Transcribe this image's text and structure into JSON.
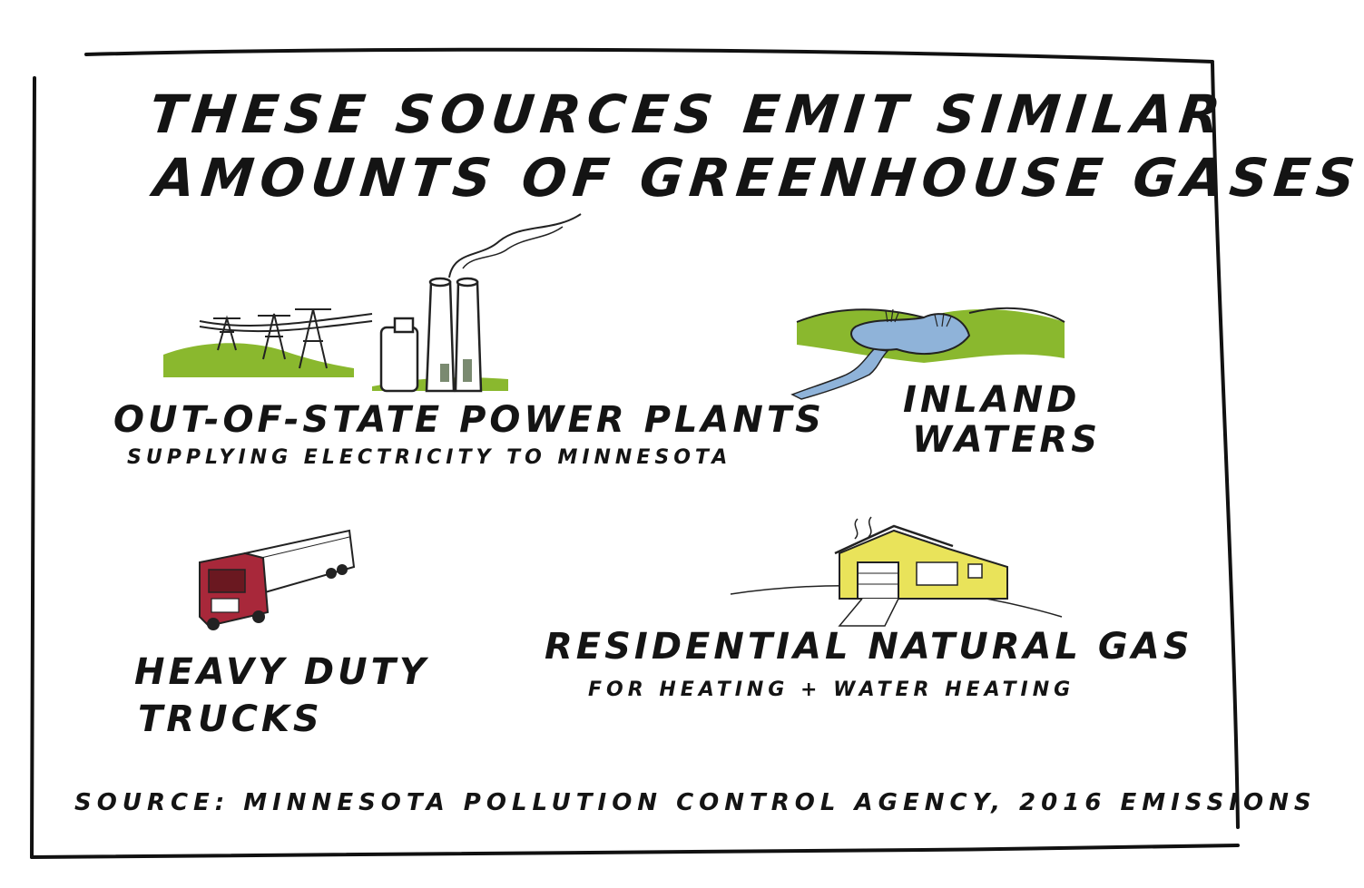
{
  "title": {
    "line1": "THESE SOURCES EMIT SIMILAR",
    "line2": "AMOUNTS OF GREENHOUSE GASES"
  },
  "items": [
    {
      "label": "OUT-OF-STATE POWER PLANTS",
      "sublabel": "SUPPLYING ELECTRICITY TO MINNESOTA",
      "icon": "power-plant-icon"
    },
    {
      "label_line1": "INLAND",
      "label_line2": "WATERS",
      "icon": "lake-icon"
    },
    {
      "label_line1": "HEAVY DUTY",
      "label_line2": "TRUCKS",
      "icon": "truck-icon"
    },
    {
      "label": "RESIDENTIAL NATURAL GAS",
      "sublabel": "FOR HEATING + WATER HEATING",
      "icon": "house-icon"
    }
  ],
  "source": "SOURCE: MINNESOTA POLLUTION CONTROL AGENCY, 2016 EMISSIONS",
  "colors": {
    "grass": "#8ab82e",
    "water": "#8fb3d9",
    "truck": "#a8283a",
    "house": "#e9e35a",
    "ink": "#141414"
  }
}
